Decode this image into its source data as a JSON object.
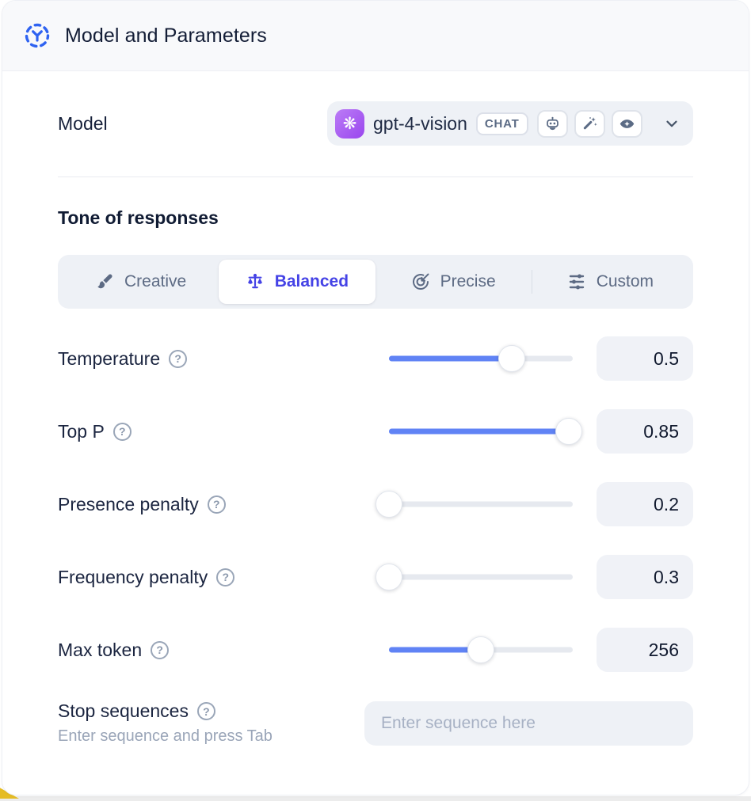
{
  "header": {
    "title": "Model and Parameters",
    "icon": "model-icon"
  },
  "model": {
    "label": "Model",
    "name": "gpt-4-vision",
    "type_badge": "CHAT",
    "provider_icon": "openai-logo",
    "capability_icons": [
      "robot-icon",
      "magic-wand-icon",
      "vision-eye-icon"
    ]
  },
  "tone": {
    "heading": "Tone of responses",
    "tabs": [
      {
        "label": "Creative",
        "icon": "brush-icon",
        "active": false
      },
      {
        "label": "Balanced",
        "icon": "balance-scale-icon",
        "active": true
      },
      {
        "label": "Precise",
        "icon": "target-icon",
        "active": false
      },
      {
        "label": "Custom",
        "icon": "sliders-icon",
        "active": false
      }
    ]
  },
  "parameters": [
    {
      "label": "Temperature",
      "value": "0.5",
      "fill_pct": 67
    },
    {
      "label": "Top P",
      "value": "0.85",
      "fill_pct": 98
    },
    {
      "label": "Presence penalty",
      "value": "0.2",
      "fill_pct": 0
    },
    {
      "label": "Frequency penalty",
      "value": "0.3",
      "fill_pct": 0
    },
    {
      "label": "Max token",
      "value": "256",
      "fill_pct": 50
    }
  ],
  "stop_sequences": {
    "label": "Stop sequences",
    "hint": "Enter sequence and press Tab",
    "placeholder": "Enter sequence here"
  },
  "icons": {
    "help_glyph": "?"
  },
  "colors": {
    "accent_blue": "#6083f5",
    "active_indigo": "#4543e6",
    "header_icon_blue": "#2f63f1",
    "provider_purple": "#9a46ee",
    "panel_gray": "#eef1f6",
    "value_box_gray": "#f0f2f7",
    "corner_yellow": "#e5bc25"
  }
}
